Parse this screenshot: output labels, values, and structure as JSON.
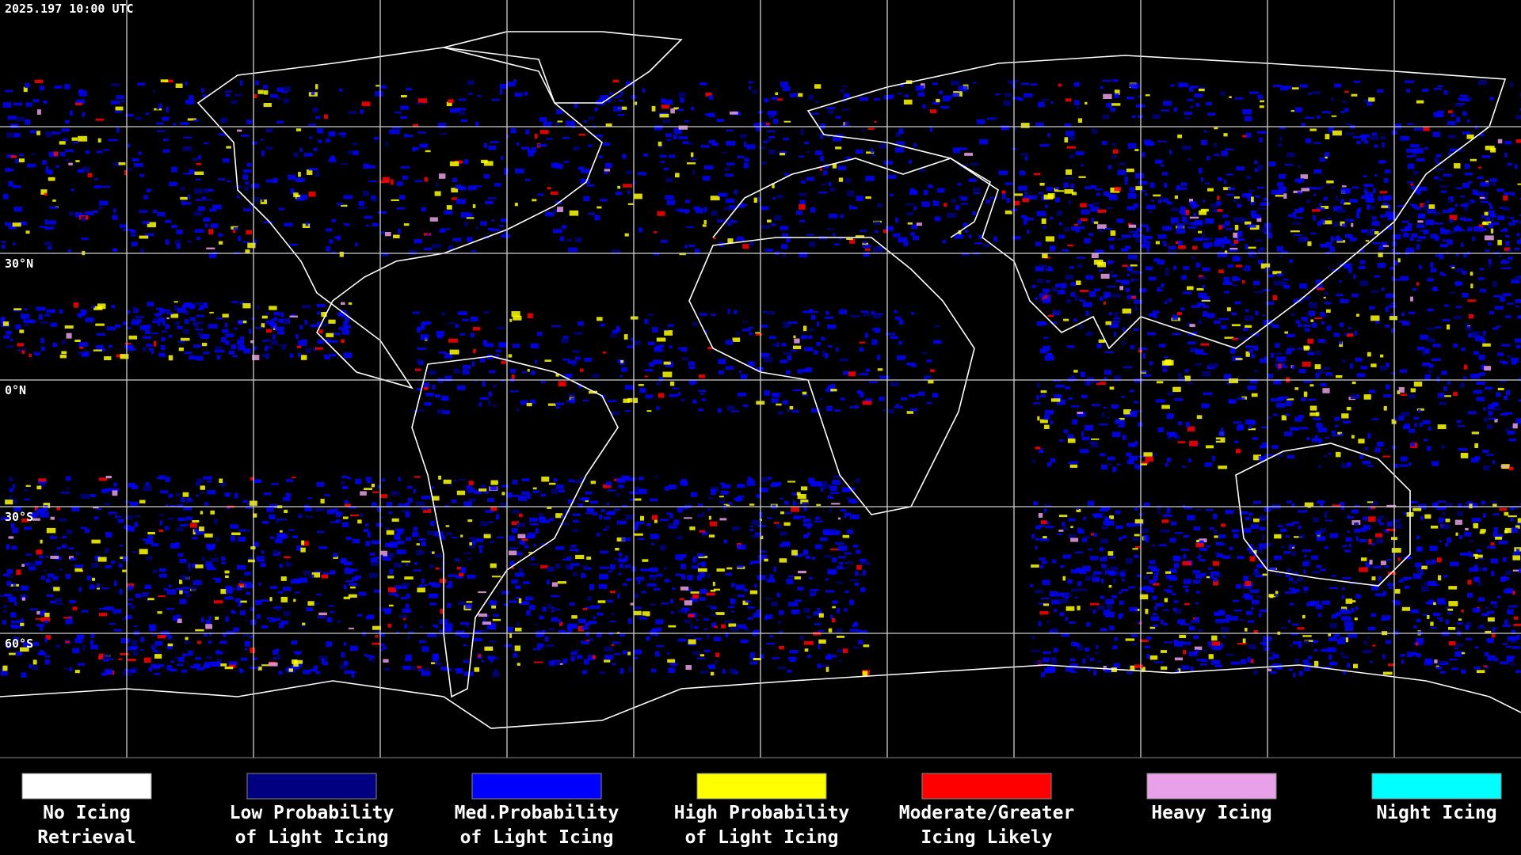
{
  "header": {
    "title": "2025.197 10:00 UTC"
  },
  "latitude_labels": [
    "30°N",
    "0°N",
    "30°S",
    "60°S"
  ],
  "legend": [
    {
      "lines": [
        "No Icing",
        "Retrieval"
      ],
      "color": "#ffffff"
    },
    {
      "lines": [
        "Low Probability",
        "of Light Icing"
      ],
      "color": "#000080"
    },
    {
      "lines": [
        "Med.Probability",
        "of Light Icing"
      ],
      "color": "#0000ff"
    },
    {
      "lines": [
        "High Probability",
        "of Light Icing"
      ],
      "color": "#ffff00"
    },
    {
      "lines": [
        "Moderate/Greater",
        "Icing Likely"
      ],
      "color": "#ff0000"
    },
    {
      "lines": [
        "Heavy Icing"
      ],
      "color": "#e8a0e8"
    },
    {
      "lines": [
        "Night Icing"
      ],
      "color": "#00ffff"
    }
  ]
}
